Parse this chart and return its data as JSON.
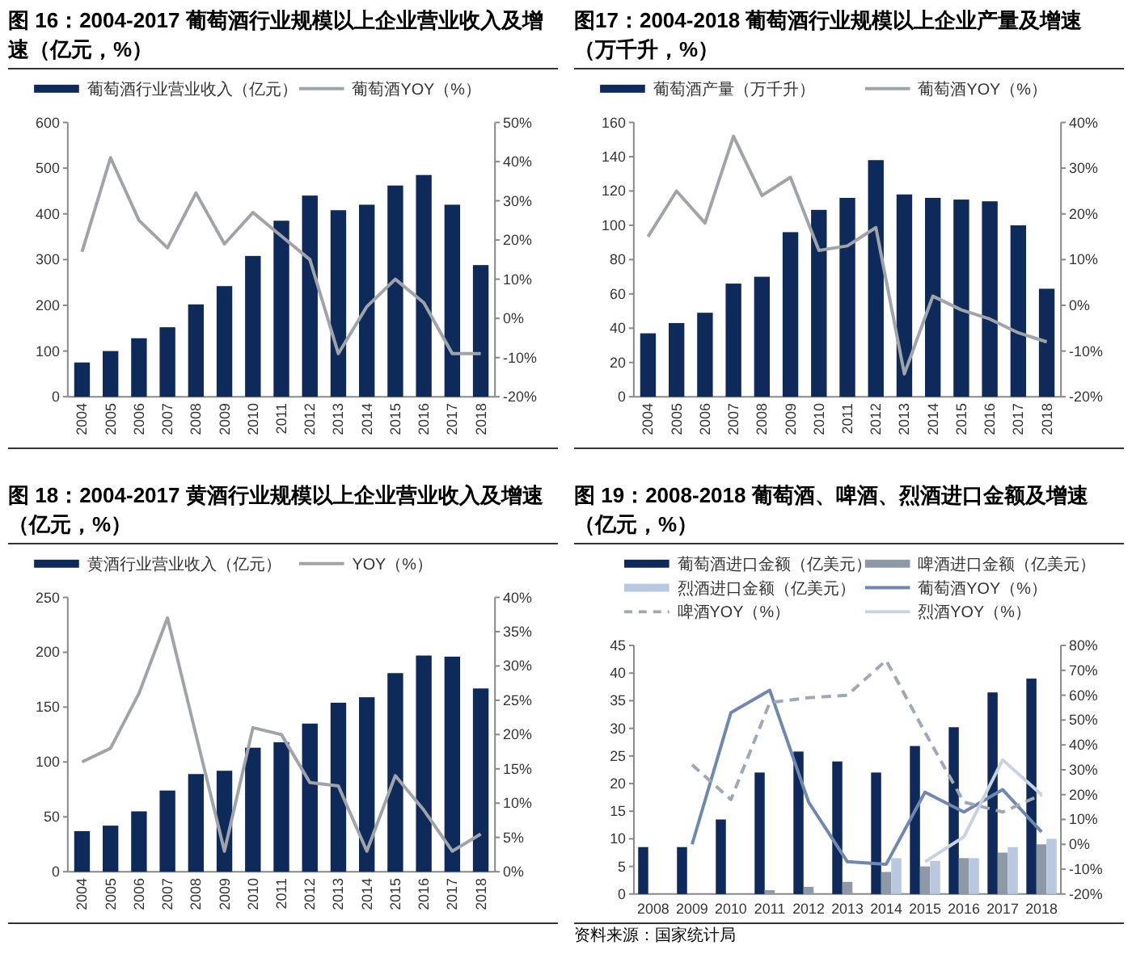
{
  "chart_data": [
    {
      "type": "bar",
      "title": "图 16：2004-2017 葡萄酒行业规模以上企业营业收入及增速（亿元，%）",
      "categories": [
        "2004",
        "2005",
        "2006",
        "2007",
        "2008",
        "2009",
        "2010",
        "2011",
        "2012",
        "2013",
        "2014",
        "2015",
        "2016",
        "2017",
        "2018"
      ],
      "series": [
        {
          "name": "葡萄酒行业营业收入（亿元）",
          "color": "#0d2a5a",
          "values": [
            75,
            100,
            128,
            152,
            202,
            242,
            308,
            385,
            440,
            408,
            420,
            462,
            485,
            420,
            288
          ]
        },
        {
          "name": "葡萄酒YOY（%）",
          "type": "line",
          "axis": "y2",
          "color": "#a0a4a8",
          "values": [
            17,
            41,
            25,
            18,
            32,
            19,
            27,
            21,
            15,
            -9,
            3,
            10,
            4,
            -9,
            -9
          ]
        }
      ],
      "ylim": [
        0,
        600
      ],
      "yticks": [
        0,
        100,
        200,
        300,
        400,
        500,
        600
      ],
      "y2lim": [
        -20,
        50
      ],
      "y2ticks": [
        {
          "value": -20,
          "label": "-20%"
        },
        {
          "value": -10,
          "label": "-10%"
        },
        {
          "value": 0,
          "label": "0%"
        },
        {
          "value": 10,
          "label": "10%"
        },
        {
          "value": 20,
          "label": "20%"
        },
        {
          "value": 30,
          "label": "30%"
        },
        {
          "value": 40,
          "label": "40%"
        },
        {
          "value": 50,
          "label": "50%"
        }
      ],
      "legend": "top",
      "grid": false
    },
    {
      "type": "bar",
      "title": "图17：2004-2018 葡萄酒行业规模以上企业产量及增速（万千升，%）",
      "categories": [
        "2004",
        "2005",
        "2006",
        "2007",
        "2008",
        "2009",
        "2010",
        "2011",
        "2012",
        "2013",
        "2014",
        "2015",
        "2016",
        "2017",
        "2018"
      ],
      "series": [
        {
          "name": "葡萄酒产量（万千升）",
          "color": "#0d2a5a",
          "values": [
            37,
            43,
            49,
            66,
            70,
            96,
            109,
            116,
            138,
            118,
            116,
            115,
            114,
            100,
            63
          ]
        },
        {
          "name": "葡萄酒YOY（%）",
          "type": "line",
          "axis": "y2",
          "color": "#a0a4a8",
          "values": [
            15,
            25,
            18,
            37,
            24,
            28,
            12,
            13,
            17,
            -15,
            2,
            -1,
            -3,
            -6,
            -8
          ]
        }
      ],
      "ylim": [
        0,
        160
      ],
      "yticks": [
        0,
        20,
        40,
        60,
        80,
        100,
        120,
        140,
        160
      ],
      "y2lim": [
        -20,
        40
      ],
      "y2ticks": [
        {
          "value": -20,
          "label": "-20%"
        },
        {
          "value": -10,
          "label": "-10%"
        },
        {
          "value": 0,
          "label": "0%"
        },
        {
          "value": 10,
          "label": "10%"
        },
        {
          "value": 20,
          "label": "20%"
        },
        {
          "value": 30,
          "label": "30%"
        },
        {
          "value": 40,
          "label": "40%"
        }
      ],
      "legend": "top",
      "grid": false
    },
    {
      "type": "bar",
      "title": "图 18：2004-2017 黄酒行业规模以上企业营业收入及增速（亿元，%）",
      "categories": [
        "2004",
        "2005",
        "2006",
        "2007",
        "2008",
        "2009",
        "2010",
        "2011",
        "2012",
        "2013",
        "2014",
        "2015",
        "2016",
        "2017",
        "2018"
      ],
      "series": [
        {
          "name": "黄酒行业营业收入（亿元）",
          "color": "#0d2a5a",
          "values": [
            37,
            42,
            55,
            74,
            89,
            92,
            113,
            118,
            135,
            154,
            159,
            181,
            197,
            196,
            167
          ]
        },
        {
          "name": "YOY（%）",
          "type": "line",
          "axis": "y2",
          "color": "#a0a4a8",
          "values": [
            16,
            18,
            26,
            37,
            20,
            3,
            21,
            20,
            13,
            12.5,
            3,
            14,
            9,
            3,
            5.5
          ]
        }
      ],
      "ylim": [
        0,
        250
      ],
      "yticks": [
        0,
        50,
        100,
        150,
        200,
        250
      ],
      "y2lim": [
        0,
        40
      ],
      "y2ticks": [
        {
          "value": 0,
          "label": "0%"
        },
        {
          "value": 5,
          "label": "5%"
        },
        {
          "value": 10,
          "label": "10%"
        },
        {
          "value": 15,
          "label": "15%"
        },
        {
          "value": 20,
          "label": "20%"
        },
        {
          "value": 25,
          "label": "25%"
        },
        {
          "value": 30,
          "label": "30%"
        },
        {
          "value": 35,
          "label": "35%"
        },
        {
          "value": 40,
          "label": "40%"
        }
      ],
      "legend": "top",
      "grid": false
    },
    {
      "type": "bar",
      "title": "图 19：2008-2018 葡萄酒、啤酒、烈酒进口金额及增速（亿元，%）",
      "categories": [
        "2008",
        "2009",
        "2010",
        "2011",
        "2012",
        "2013",
        "2014",
        "2015",
        "2016",
        "2017",
        "2018"
      ],
      "series": [
        {
          "name": "葡萄酒进口金额（亿美元）",
          "color": "#0d2a5a",
          "values": [
            8.5,
            8.5,
            13.5,
            22,
            25.8,
            24,
            22,
            26.8,
            30.2,
            36.5,
            39
          ]
        },
        {
          "name": "啤酒进口金额（亿美元）",
          "color": "#8e99a8",
          "values": [
            0,
            null,
            null,
            0.7,
            1.3,
            2.2,
            4,
            5,
            6.5,
            7.5,
            9
          ]
        },
        {
          "name": "烈酒进口金额（亿美元）",
          "color": "#b8c8e0",
          "values": [
            0,
            0,
            0,
            0,
            0,
            0,
            6.5,
            6,
            6.5,
            8.5,
            10
          ]
        },
        {
          "name": "葡萄酒YOY（%）",
          "type": "line",
          "axis": "y2",
          "color": "#6f88b0",
          "values": [
            null,
            0,
            53,
            62,
            17,
            -7,
            -8,
            21,
            13,
            22,
            5
          ]
        },
        {
          "name": "啤酒YOY（%）",
          "type": "line",
          "axis": "y2",
          "line_style": "dashed",
          "color": "#a0a8b4",
          "values": [
            null,
            32,
            18,
            57,
            59,
            60,
            74,
            45,
            17,
            13,
            20
          ]
        },
        {
          "name": "烈酒YOY（%）",
          "type": "line",
          "axis": "y2",
          "color": "#c8d2e0",
          "values": [
            null,
            null,
            null,
            null,
            null,
            null,
            null,
            -7,
            3,
            34,
            20
          ]
        }
      ],
      "ylim": [
        0,
        45
      ],
      "yticks": [
        0,
        5,
        10,
        15,
        20,
        25,
        30,
        35,
        40,
        45
      ],
      "y2lim": [
        -20,
        80
      ],
      "y2ticks": [
        {
          "value": -20,
          "label": "-20%"
        },
        {
          "value": -10,
          "label": "-10%"
        },
        {
          "value": 0,
          "label": "0%"
        },
        {
          "value": 10,
          "label": "10%"
        },
        {
          "value": 20,
          "label": "20%"
        },
        {
          "value": 30,
          "label": "30%"
        },
        {
          "value": 40,
          "label": "40%"
        },
        {
          "value": 50,
          "label": "50%"
        },
        {
          "value": 60,
          "label": "60%"
        },
        {
          "value": 70,
          "label": "70%"
        },
        {
          "value": 80,
          "label": "80%"
        }
      ],
      "legend": "top",
      "grid": false,
      "annotations": [
        "资料来源：国家统计局"
      ]
    }
  ]
}
